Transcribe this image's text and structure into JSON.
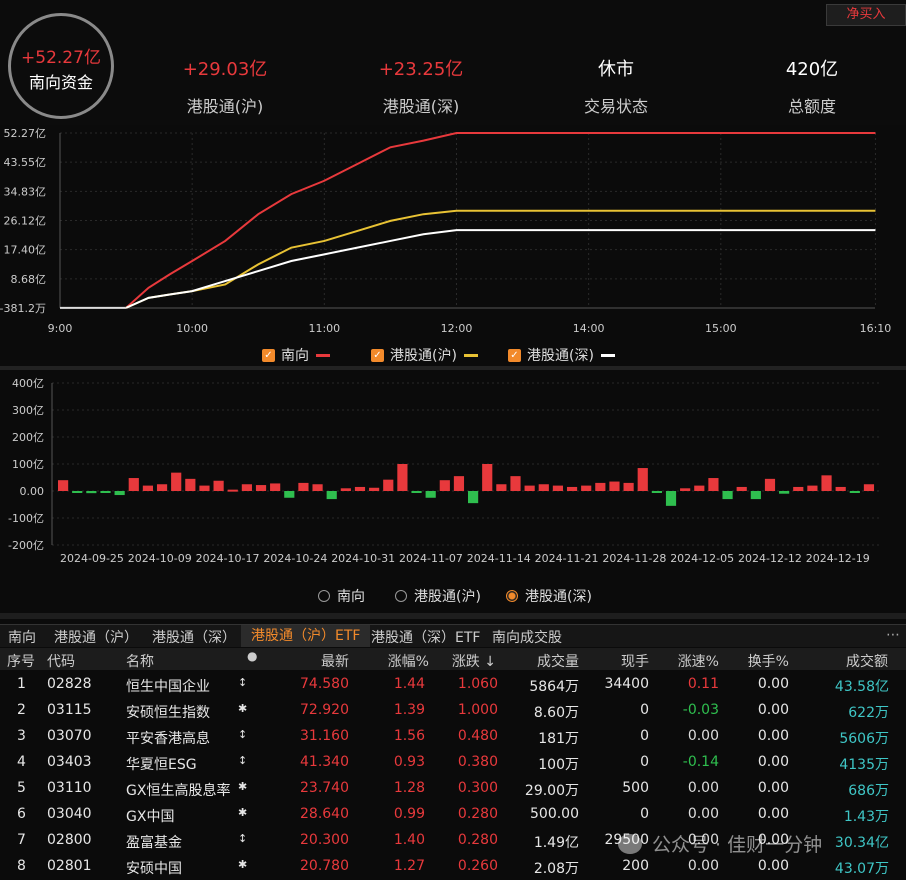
{
  "header": {
    "net_buy_button": "净买入",
    "southbound": {
      "value": "+52.27亿",
      "label": "南向资金"
    },
    "stats": [
      {
        "value": "+29.03亿",
        "label": "港股通(沪)",
        "color": "#e8393c"
      },
      {
        "value": "+23.25亿",
        "label": "港股通(深)",
        "color": "#e8393c"
      },
      {
        "value": "休市",
        "label": "交易状态",
        "color": "#ffffff"
      },
      {
        "value": "420亿",
        "label": "总额度",
        "color": "#ffffff"
      }
    ]
  },
  "chart_data": [
    {
      "type": "line",
      "y_tick_labels": [
        "52.27亿",
        "43.55亿",
        "34.83亿",
        "26.12亿",
        "17.40亿",
        "8.68亿",
        "-381.2万"
      ],
      "x_tick_labels": [
        "9:00",
        "10:00",
        "11:00",
        "12:00",
        "14:00",
        "15:00",
        "16:10"
      ],
      "ylim": [
        -0.04,
        52.27
      ],
      "series": [
        {
          "name": "南向",
          "color": "#e8393c",
          "values": [
            [
              9.5,
              0
            ],
            [
              9.67,
              6
            ],
            [
              9.83,
              10
            ],
            [
              10.0,
              14
            ],
            [
              10.25,
              20
            ],
            [
              10.5,
              28
            ],
            [
              10.75,
              34
            ],
            [
              11.0,
              38
            ],
            [
              11.25,
              43
            ],
            [
              11.5,
              48
            ],
            [
              11.75,
              50
            ],
            [
              12.0,
              52.27
            ],
            [
              16.17,
              52.27
            ]
          ]
        },
        {
          "name": "港股通(沪)",
          "color": "#e8c234",
          "values": [
            [
              9.5,
              0
            ],
            [
              9.67,
              3
            ],
            [
              9.83,
              4
            ],
            [
              10.0,
              5
            ],
            [
              10.25,
              7
            ],
            [
              10.5,
              13
            ],
            [
              10.75,
              18
            ],
            [
              11.0,
              20
            ],
            [
              11.25,
              23
            ],
            [
              11.5,
              26
            ],
            [
              11.75,
              28
            ],
            [
              12.0,
              29.03
            ],
            [
              16.17,
              29.03
            ]
          ]
        },
        {
          "name": "港股通(深)",
          "color": "#ffffff",
          "values": [
            [
              9.5,
              0
            ],
            [
              9.67,
              3
            ],
            [
              9.83,
              4
            ],
            [
              10.0,
              5
            ],
            [
              10.25,
              8
            ],
            [
              10.5,
              11
            ],
            [
              10.75,
              14
            ],
            [
              11.0,
              16
            ],
            [
              11.25,
              18
            ],
            [
              11.5,
              20
            ],
            [
              11.75,
              22
            ],
            [
              12.0,
              23.25
            ],
            [
              16.17,
              23.25
            ]
          ]
        }
      ]
    },
    {
      "type": "bar",
      "y_tick_labels": [
        "400亿",
        "300亿",
        "200亿",
        "100亿",
        "0.00",
        "-100亿",
        "-200亿"
      ],
      "ylim": [
        -200,
        400
      ],
      "x_tick_labels": [
        "2024-09-25",
        "2024-10-09",
        "2024-10-17",
        "2024-10-24",
        "2024-10-31",
        "2024-11-07",
        "2024-11-14",
        "2024-11-21",
        "2024-11-28",
        "2024-12-05",
        "2024-12-12",
        "2024-12-19"
      ],
      "values": [
        40,
        -5,
        -8,
        -5,
        -15,
        48,
        20,
        25,
        68,
        45,
        20,
        38,
        5,
        25,
        22,
        28,
        -25,
        30,
        25,
        -30,
        10,
        15,
        12,
        42,
        100,
        -5,
        -25,
        40,
        55,
        -45,
        100,
        25,
        55,
        20,
        25,
        20,
        15,
        20,
        30,
        35,
        30,
        85,
        -5,
        -55,
        10,
        20,
        48,
        -30,
        15,
        -30,
        45,
        -10,
        15,
        20,
        58,
        15,
        -5,
        25
      ],
      "up_color": "#e8393c",
      "down_color": "#2fbf4f"
    }
  ],
  "legend": [
    {
      "label": "南向",
      "color": "#e8393c"
    },
    {
      "label": "港股通(沪)",
      "color": "#e8c234"
    },
    {
      "label": "港股通(深)",
      "color": "#ffffff"
    }
  ],
  "bar_selector": [
    {
      "label": "南向",
      "selected": false
    },
    {
      "label": "港股通(沪)",
      "selected": false
    },
    {
      "label": "港股通(深)",
      "selected": true
    }
  ],
  "tabs": [
    "南向",
    "港股通（沪）",
    "港股通（深）",
    "港股通（沪）ETF",
    "港股通（深）ETF",
    "南向成交股"
  ],
  "active_tab": 3,
  "more_icon": "ellipsis-icon",
  "table": {
    "columns": [
      "序号",
      "代码",
      "名称",
      "●",
      "最新",
      "涨幅%",
      "涨跌 ↓",
      "成交量",
      "现手",
      "涨速%",
      "换手%",
      "成交额"
    ],
    "rows": [
      [
        "1",
        "02828",
        "恒生中国企业",
        "↕",
        "74.580",
        "1.44",
        "1.060",
        "5864万",
        "34400",
        "0.11",
        "0.00",
        "43.58亿"
      ],
      [
        "2",
        "03115",
        "安硕恒生指数",
        "✱",
        "72.920",
        "1.39",
        "1.000",
        "8.60万",
        "0",
        "-0.03",
        "0.00",
        "622万"
      ],
      [
        "3",
        "03070",
        "平安香港高息",
        "↕",
        "31.160",
        "1.56",
        "0.480",
        "181万",
        "0",
        "0.00",
        "0.00",
        "5606万"
      ],
      [
        "4",
        "03403",
        "华夏恒ESG",
        "↕",
        "41.340",
        "0.93",
        "0.380",
        "100万",
        "0",
        "-0.14",
        "0.00",
        "4135万"
      ],
      [
        "5",
        "03110",
        "GX恒生高股息率",
        "✱",
        "23.740",
        "1.28",
        "0.300",
        "29.00万",
        "500",
        "0.00",
        "0.00",
        "686万"
      ],
      [
        "6",
        "03040",
        "GX中国",
        "✱",
        "28.640",
        "0.99",
        "0.280",
        "500.00",
        "0",
        "0.00",
        "0.00",
        "1.43万"
      ],
      [
        "7",
        "02800",
        "盈富基金",
        "↕",
        "20.300",
        "1.40",
        "0.280",
        "1.49亿",
        "29500",
        "0.00",
        "0.00",
        "30.34亿"
      ],
      [
        "8",
        "02801",
        "安硕中国",
        "✱",
        "20.780",
        "1.27",
        "0.260",
        "2.08万",
        "200",
        "0.00",
        "0.00",
        "43.07万"
      ]
    ]
  },
  "watermark": "公众号 · 佳财一分钟"
}
